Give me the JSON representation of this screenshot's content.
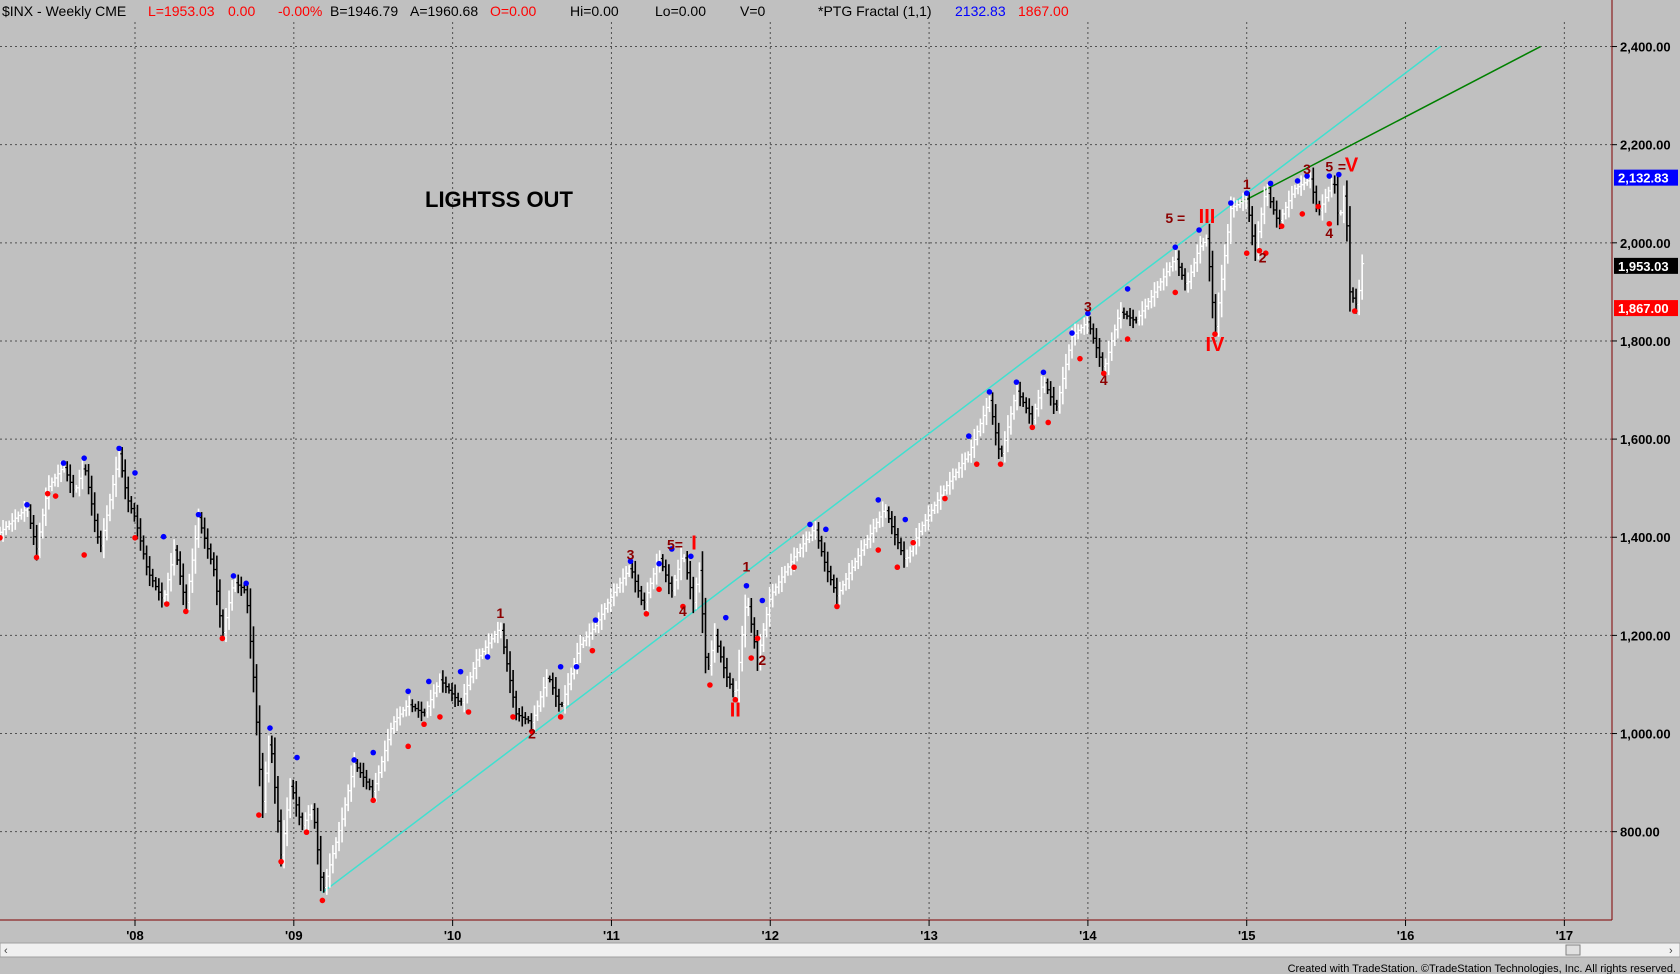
{
  "header": {
    "symbol": "$INX - Weekly  CME",
    "last": "L=1953.03",
    "change": "0.00",
    "pct": "-0.00%",
    "bid": "B=1946.79",
    "ask": "A=1960.68",
    "open": "O=0.00",
    "hi": "Hi=0.00",
    "lo": "Lo=0.00",
    "vol": "V=0",
    "indicator": "*PTG Fractal (1,1)",
    "ind_hi": "2132.83",
    "ind_lo": "1867.00"
  },
  "annotation_text": "LIGHTSS OUT",
  "footer": "Created with TradeStation. ©TradeStation Technologies, Inc. All rights reserved.",
  "price_tags": {
    "fractal_high": "2,132.83",
    "last": "1,953.03",
    "fractal_low": "1,867.00"
  },
  "colors": {
    "background": "#c0c0c0",
    "grid": "#505050",
    "up_bar": "#ffffff",
    "down_bar": "#000000",
    "fractal_high": "#0000ff",
    "fractal_low": "#ff0000",
    "wave_label": "#8b0000",
    "wave_roman": "#ff0000",
    "trendline_1": "#40e0d0",
    "trendline_2": "#008000",
    "tag_high_bg": "#0000ff",
    "tag_last_bg": "#000000",
    "tag_low_bg": "#ff0000"
  },
  "chart_data": {
    "type": "ohlc",
    "title": "$INX - Weekly  CME",
    "xlabel": "",
    "ylabel": "",
    "ylim": [
      620,
      2450
    ],
    "xlim": [
      2007.15,
      2017.3
    ],
    "y_ticks": [
      {
        "value": 800,
        "label": "800.00"
      },
      {
        "value": 1000,
        "label": "1,000.00"
      },
      {
        "value": 1200,
        "label": "1,200.00"
      },
      {
        "value": 1400,
        "label": "1,400.00"
      },
      {
        "value": 1600,
        "label": "1,600.00"
      },
      {
        "value": 1800,
        "label": "1,800.00"
      },
      {
        "value": 2000,
        "label": "2,000.00"
      },
      {
        "value": 2200,
        "label": "2,200.00"
      },
      {
        "value": 2400,
        "label": "2,400.00"
      }
    ],
    "x_ticks": [
      {
        "value": 2008,
        "label": "'08"
      },
      {
        "value": 2009,
        "label": "'09"
      },
      {
        "value": 2010,
        "label": "'10"
      },
      {
        "value": 2011,
        "label": "'11"
      },
      {
        "value": 2012,
        "label": "'12"
      },
      {
        "value": 2013,
        "label": "'13"
      },
      {
        "value": 2014,
        "label": "'14"
      },
      {
        "value": 2015,
        "label": "'15"
      },
      {
        "value": 2016,
        "label": "'16"
      },
      {
        "value": 2017,
        "label": "'17"
      }
    ],
    "grid": true,
    "price_path": [
      [
        2007.15,
        1410
      ],
      [
        2007.25,
        1440
      ],
      [
        2007.32,
        1460
      ],
      [
        2007.38,
        1375
      ],
      [
        2007.45,
        1500
      ],
      [
        2007.55,
        1545
      ],
      [
        2007.62,
        1490
      ],
      [
        2007.68,
        1550
      ],
      [
        2007.78,
        1375
      ],
      [
        2007.9,
        1570
      ],
      [
        2007.95,
        1480
      ],
      [
        2008.0,
        1440
      ],
      [
        2008.08,
        1330
      ],
      [
        2008.18,
        1270
      ],
      [
        2008.25,
        1380
      ],
      [
        2008.32,
        1260
      ],
      [
        2008.4,
        1440
      ],
      [
        2008.5,
        1330
      ],
      [
        2008.55,
        1200
      ],
      [
        2008.62,
        1310
      ],
      [
        2008.7,
        1290
      ],
      [
        2008.75,
        1100
      ],
      [
        2008.8,
        850
      ],
      [
        2008.85,
        1000
      ],
      [
        2008.92,
        750
      ],
      [
        2008.98,
        900
      ],
      [
        2009.05,
        810
      ],
      [
        2009.12,
        850
      ],
      [
        2009.18,
        676
      ],
      [
        2009.3,
        820
      ],
      [
        2009.38,
        940
      ],
      [
        2009.5,
        880
      ],
      [
        2009.62,
        1020
      ],
      [
        2009.72,
        1060
      ],
      [
        2009.82,
        1040
      ],
      [
        2009.92,
        1110
      ],
      [
        2010.05,
        1060
      ],
      [
        2010.15,
        1150
      ],
      [
        2010.3,
        1217
      ],
      [
        2010.4,
        1040
      ],
      [
        2010.5,
        1022
      ],
      [
        2010.6,
        1120
      ],
      [
        2010.68,
        1050
      ],
      [
        2010.8,
        1180
      ],
      [
        2010.9,
        1220
      ],
      [
        2011.0,
        1280
      ],
      [
        2011.12,
        1340
      ],
      [
        2011.2,
        1260
      ],
      [
        2011.3,
        1360
      ],
      [
        2011.38,
        1290
      ],
      [
        2011.45,
        1370
      ],
      [
        2011.52,
        1260
      ],
      [
        2011.55,
        1350
      ],
      [
        2011.6,
        1120
      ],
      [
        2011.65,
        1200
      ],
      [
        2011.72,
        1120
      ],
      [
        2011.78,
        1075
      ],
      [
        2011.85,
        1280
      ],
      [
        2011.92,
        1150
      ],
      [
        2012.0,
        1280
      ],
      [
        2012.15,
        1360
      ],
      [
        2012.28,
        1420
      ],
      [
        2012.35,
        1340
      ],
      [
        2012.42,
        1280
      ],
      [
        2012.55,
        1360
      ],
      [
        2012.72,
        1460
      ],
      [
        2012.85,
        1350
      ],
      [
        2012.95,
        1420
      ],
      [
        2013.1,
        1500
      ],
      [
        2013.25,
        1570
      ],
      [
        2013.38,
        1680
      ],
      [
        2013.45,
        1560
      ],
      [
        2013.55,
        1700
      ],
      [
        2013.65,
        1640
      ],
      [
        2013.72,
        1720
      ],
      [
        2013.8,
        1660
      ],
      [
        2013.9,
        1810
      ],
      [
        2014.0,
        1840
      ],
      [
        2014.1,
        1740
      ],
      [
        2014.2,
        1860
      ],
      [
        2014.3,
        1840
      ],
      [
        2014.42,
        1900
      ],
      [
        2014.55,
        1970
      ],
      [
        2014.62,
        1910
      ],
      [
        2014.7,
        1990
      ],
      [
        2014.75,
        2010
      ],
      [
        2014.8,
        1820
      ],
      [
        2014.9,
        2070
      ],
      [
        2015.0,
        2090
      ],
      [
        2015.05,
        1980
      ],
      [
        2015.12,
        2110
      ],
      [
        2015.2,
        2040
      ],
      [
        2015.3,
        2110
      ],
      [
        2015.4,
        2130
      ],
      [
        2015.45,
        2060
      ],
      [
        2015.55,
        2130
      ],
      [
        2015.58,
        2040
      ],
      [
        2015.62,
        2110
      ],
      [
        2015.65,
        1900
      ],
      [
        2015.7,
        1867
      ],
      [
        2015.72,
        1960
      ],
      [
        2015.74,
        1953
      ]
    ],
    "fractal_highs": [
      [
        2007.32,
        1460
      ],
      [
        2007.55,
        1545
      ],
      [
        2007.68,
        1555
      ],
      [
        2007.9,
        1575
      ],
      [
        2008.0,
        1525
      ],
      [
        2008.18,
        1395
      ],
      [
        2008.4,
        1440
      ],
      [
        2008.62,
        1315
      ],
      [
        2008.7,
        1300
      ],
      [
        2008.85,
        1005
      ],
      [
        2009.02,
        945
      ],
      [
        2009.38,
        940
      ],
      [
        2009.5,
        955
      ],
      [
        2009.72,
        1080
      ],
      [
        2009.85,
        1100
      ],
      [
        2010.05,
        1120
      ],
      [
        2010.22,
        1150
      ],
      [
        2010.68,
        1130
      ],
      [
        2010.78,
        1130
      ],
      [
        2010.9,
        1225
      ],
      [
        2011.12,
        1345
      ],
      [
        2011.3,
        1340
      ],
      [
        2011.38,
        1370
      ],
      [
        2011.5,
        1355
      ],
      [
        2011.72,
        1230
      ],
      [
        2011.85,
        1295
      ],
      [
        2011.95,
        1265
      ],
      [
        2012.25,
        1420
      ],
      [
        2012.35,
        1410
      ],
      [
        2012.68,
        1470
      ],
      [
        2012.85,
        1430
      ],
      [
        2013.25,
        1600
      ],
      [
        2013.38,
        1690
      ],
      [
        2013.55,
        1710
      ],
      [
        2013.72,
        1730
      ],
      [
        2013.9,
        1810
      ],
      [
        2014.0,
        1850
      ],
      [
        2014.25,
        1900
      ],
      [
        2014.55,
        1985
      ],
      [
        2014.7,
        2020
      ],
      [
        2014.9,
        2075
      ],
      [
        2015.0,
        2095
      ],
      [
        2015.15,
        2115
      ],
      [
        2015.32,
        2120
      ],
      [
        2015.38,
        2130
      ],
      [
        2015.52,
        2130
      ],
      [
        2015.58,
        2133
      ]
    ],
    "fractal_lows": [
      [
        2007.15,
        1405
      ],
      [
        2007.38,
        1365
      ],
      [
        2007.45,
        1495
      ],
      [
        2007.5,
        1490
      ],
      [
        2007.68,
        1370
      ],
      [
        2008.0,
        1405
      ],
      [
        2008.2,
        1270
      ],
      [
        2008.32,
        1255
      ],
      [
        2008.55,
        1200
      ],
      [
        2008.78,
        840
      ],
      [
        2008.92,
        745
      ],
      [
        2009.08,
        805
      ],
      [
        2009.18,
        666
      ],
      [
        2009.5,
        870
      ],
      [
        2009.72,
        980
      ],
      [
        2009.82,
        1025
      ],
      [
        2009.92,
        1040
      ],
      [
        2010.1,
        1050
      ],
      [
        2010.38,
        1040
      ],
      [
        2010.5,
        1010
      ],
      [
        2010.68,
        1040
      ],
      [
        2010.88,
        1175
      ],
      [
        2011.22,
        1250
      ],
      [
        2011.3,
        1300
      ],
      [
        2011.45,
        1265
      ],
      [
        2011.62,
        1105
      ],
      [
        2011.78,
        1075
      ],
      [
        2011.88,
        1160
      ],
      [
        2011.92,
        1200
      ],
      [
        2012.15,
        1345
      ],
      [
        2012.42,
        1265
      ],
      [
        2012.68,
        1380
      ],
      [
        2012.8,
        1345
      ],
      [
        2012.9,
        1395
      ],
      [
        2013.1,
        1485
      ],
      [
        2013.3,
        1555
      ],
      [
        2013.45,
        1555
      ],
      [
        2013.65,
        1630
      ],
      [
        2013.75,
        1640
      ],
      [
        2013.95,
        1770
      ],
      [
        2014.1,
        1740
      ],
      [
        2014.25,
        1810
      ],
      [
        2014.55,
        1905
      ],
      [
        2014.8,
        1820
      ],
      [
        2015.0,
        1985
      ],
      [
        2015.08,
        1990
      ],
      [
        2015.12,
        1985
      ],
      [
        2015.22,
        2040
      ],
      [
        2015.35,
        2065
      ],
      [
        2015.45,
        2080
      ],
      [
        2015.52,
        2045
      ],
      [
        2015.68,
        1867
      ]
    ],
    "trendlines": [
      {
        "name": "",
        "from": [
          2009.18,
          676
        ],
        "to": [
          2016.22,
          2400
        ]
      },
      {
        "name": "",
        "from": [
          2014.95,
          2080
        ],
        "to": [
          2016.85,
          2400
        ]
      }
    ],
    "wave_labels": [
      {
        "text": "1",
        "x": 2010.3,
        "y": 1235,
        "kind": "minor"
      },
      {
        "text": "2",
        "x": 2010.5,
        "y": 990,
        "kind": "minor"
      },
      {
        "text": "3",
        "x": 2011.12,
        "y": 1355,
        "kind": "minor"
      },
      {
        "text": "4",
        "x": 2011.45,
        "y": 1240,
        "kind": "minor"
      },
      {
        "text": "5=",
        "x": 2011.4,
        "y": 1375,
        "kind": "minor"
      },
      {
        "text": "I",
        "x": 2011.52,
        "y": 1375,
        "kind": "roman"
      },
      {
        "text": "1",
        "x": 2011.85,
        "y": 1330,
        "kind": "minor"
      },
      {
        "text": "2",
        "x": 2011.95,
        "y": 1140,
        "kind": "minor"
      },
      {
        "text": "II",
        "x": 2011.78,
        "y": 1035,
        "kind": "roman"
      },
      {
        "text": "3",
        "x": 2014.0,
        "y": 1860,
        "kind": "minor"
      },
      {
        "text": "4",
        "x": 2014.1,
        "y": 1710,
        "kind": "minor"
      },
      {
        "text": "5 =",
        "x": 2014.55,
        "y": 2040,
        "kind": "minor"
      },
      {
        "text": "III",
        "x": 2014.75,
        "y": 2040,
        "kind": "roman"
      },
      {
        "text": "IV",
        "x": 2014.8,
        "y": 1780,
        "kind": "roman"
      },
      {
        "text": "1",
        "x": 2015.0,
        "y": 2110,
        "kind": "minor"
      },
      {
        "text": "2",
        "x": 2015.1,
        "y": 1960,
        "kind": "minor"
      },
      {
        "text": "3",
        "x": 2015.38,
        "y": 2140,
        "kind": "minor"
      },
      {
        "text": "4",
        "x": 2015.52,
        "y": 2010,
        "kind": "minor"
      },
      {
        "text": "5",
        "x": 2015.52,
        "y": 2145,
        "kind": "minor"
      },
      {
        "text": "=",
        "x": 2015.6,
        "y": 2145,
        "kind": "minor"
      },
      {
        "text": "V",
        "x": 2015.66,
        "y": 2145,
        "kind": "roman"
      }
    ]
  }
}
